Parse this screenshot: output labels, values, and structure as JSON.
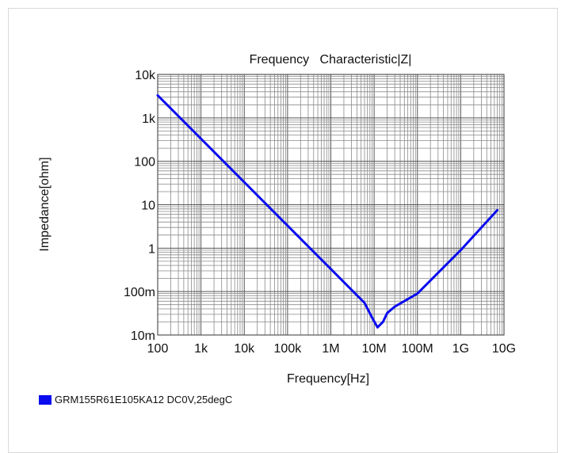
{
  "chart_data": {
    "type": "line",
    "title": "Frequency   Characteristic|Z|",
    "xlabel": "Frequency[Hz]",
    "ylabel": "Impedance[ohm]",
    "x_scale": "log",
    "y_scale": "log",
    "xlim": [
      100,
      10000000000
    ],
    "ylim": [
      0.01,
      10000
    ],
    "x_ticks": [
      {
        "value": 100,
        "label": "100"
      },
      {
        "value": 1000,
        "label": "1k"
      },
      {
        "value": 10000,
        "label": "10k"
      },
      {
        "value": 100000,
        "label": "100k"
      },
      {
        "value": 1000000,
        "label": "1M"
      },
      {
        "value": 10000000,
        "label": "10M"
      },
      {
        "value": 100000000,
        "label": "100M"
      },
      {
        "value": 1000000000,
        "label": "1G"
      },
      {
        "value": 10000000000,
        "label": "10G"
      }
    ],
    "y_ticks": [
      {
        "value": 10000,
        "label": "10k"
      },
      {
        "value": 1000,
        "label": "1k"
      },
      {
        "value": 100,
        "label": "100"
      },
      {
        "value": 10,
        "label": "10"
      },
      {
        "value": 1,
        "label": "1"
      },
      {
        "value": 0.1,
        "label": "100m"
      },
      {
        "value": 0.01,
        "label": "10m"
      }
    ],
    "grid": true,
    "legend_position": "bottom-left",
    "series": [
      {
        "name": "GRM155R61E105KA12 DC0V,25degC",
        "color": "#0b0bf0",
        "points": [
          [
            100,
            3300
          ],
          [
            1000,
            330
          ],
          [
            10000,
            33
          ],
          [
            100000,
            3.3
          ],
          [
            1000000,
            0.33
          ],
          [
            3000000,
            0.11
          ],
          [
            6000000,
            0.055
          ],
          [
            9000000,
            0.025
          ],
          [
            12000000,
            0.015
          ],
          [
            16000000,
            0.02
          ],
          [
            20000000,
            0.032
          ],
          [
            30000000,
            0.045
          ],
          [
            100000000,
            0.09
          ],
          [
            1000000000,
            0.9
          ],
          [
            7000000000,
            7.5
          ]
        ]
      }
    ]
  }
}
